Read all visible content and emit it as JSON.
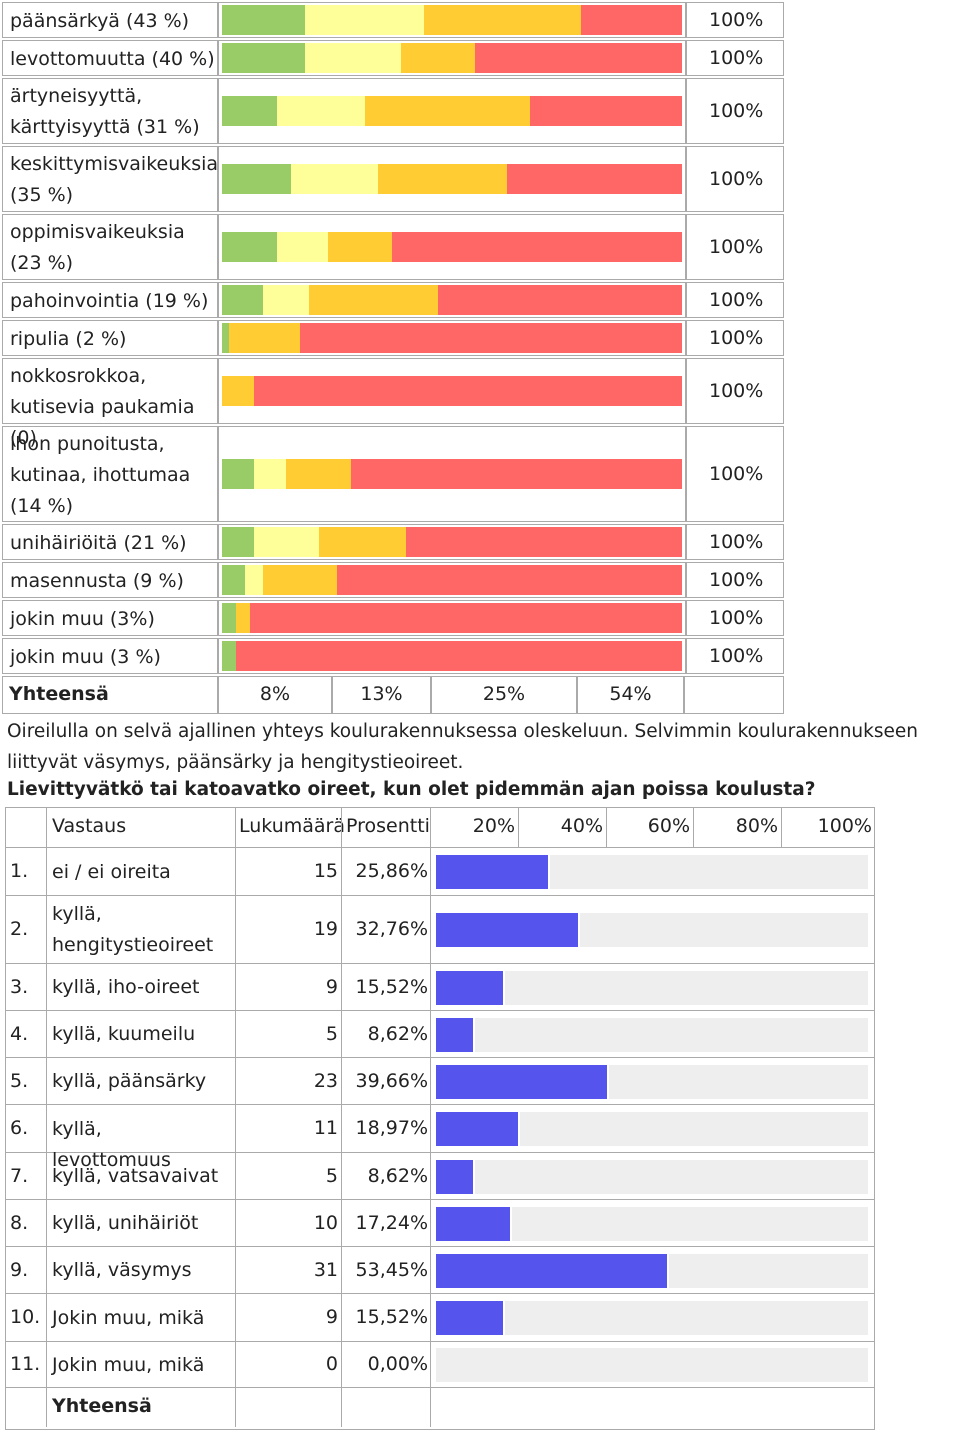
{
  "colors": {
    "green": "#99cc66",
    "lightyellow": "#ffff99",
    "orange": "#ffcc33",
    "red": "#ff6666",
    "blue": "#5555ee",
    "track": "#eeeeee"
  },
  "table1": {
    "rows": [
      {
        "label": "päänsärkyä (43 %)",
        "segments": [
          18,
          26,
          34,
          22
        ],
        "total": "100%"
      },
      {
        "label": "levottomuutta (40 %)",
        "segments": [
          18,
          21,
          16,
          45
        ],
        "total": "100%"
      },
      {
        "label": "ärtyneisyyttä, kärttyisyyttä (31 %)",
        "segments": [
          12,
          19,
          36,
          33
        ],
        "total": "100%"
      },
      {
        "label": "keskittymisvaikeuksia (35 %)",
        "segments": [
          15,
          19,
          28,
          38
        ],
        "total": "100%"
      },
      {
        "label": "oppimisvaikeuksia (23 %)",
        "segments": [
          12,
          11,
          14,
          63
        ],
        "total": "100%"
      },
      {
        "label": "pahoinvointia (19 %)",
        "segments": [
          9,
          10,
          28,
          53
        ],
        "total": "100%"
      },
      {
        "label": "ripulia (2 %)",
        "segments": [
          1.5,
          0,
          15.5,
          83
        ],
        "total": "100%"
      },
      {
        "label": "nokkosrokkoa, kutisevia paukamia (0)",
        "segments": [
          0,
          0,
          7,
          93
        ],
        "total": "100%"
      },
      {
        "label": "ihon punoitusta, kutinaa, ihottumaa (14 %)",
        "segments": [
          7,
          7,
          14,
          72
        ],
        "total": "100%"
      },
      {
        "label": "unihäiriöitä (21 %)",
        "segments": [
          7,
          14,
          19,
          60
        ],
        "total": "100%"
      },
      {
        "label": "masennusta (9 %)",
        "segments": [
          5,
          4,
          16,
          75
        ],
        "total": "100%"
      },
      {
        "label": "jokin muu (3%)",
        "segments": [
          3,
          0,
          3,
          94
        ],
        "total": "100%"
      },
      {
        "label": "jokin muu (3 %)",
        "segments": [
          3,
          0,
          0,
          97
        ],
        "total": "100%"
      }
    ],
    "footer": {
      "label": "Yhteensä",
      "values": [
        "8%",
        "13%",
        "25%",
        "54%"
      ]
    }
  },
  "paragraph": "Oireilulla on selvä ajallinen yhteys koulurakennuksessa oleskeluun. Selvimmin koulurakennukseen liittyvät väsymys, päänsärky ja hengitystieoireet.",
  "question": "Lievittyvätkö tai katoavatko oireet, kun olet pidemmän ajan poissa koulusta?",
  "table2": {
    "headers": {
      "answer": "Vastaus",
      "count": "Lukumäärä",
      "percent": "Prosentti",
      "scale": [
        "20%",
        "40%",
        "60%",
        "80%",
        "100%"
      ]
    },
    "rows": [
      {
        "num": "1.",
        "label": "ei / ei oireita",
        "count": "15",
        "percent": "25,86%",
        "value": 25.86
      },
      {
        "num": "2.",
        "label": "kyllä, hengitystieoireet",
        "count": "19",
        "percent": "32,76%",
        "value": 32.76
      },
      {
        "num": "3.",
        "label": "kyllä, iho-oireet",
        "count": "9",
        "percent": "15,52%",
        "value": 15.52
      },
      {
        "num": "4.",
        "label": "kyllä, kuumeilu",
        "count": "5",
        "percent": "8,62%",
        "value": 8.62
      },
      {
        "num": "5.",
        "label": "kyllä, päänsärky",
        "count": "23",
        "percent": "39,66%",
        "value": 39.66
      },
      {
        "num": "6.",
        "label": "kyllä, levottomuus",
        "count": "11",
        "percent": "18,97%",
        "value": 18.97
      },
      {
        "num": "7.",
        "label": "kyllä, vatsavaivat",
        "count": "5",
        "percent": "8,62%",
        "value": 8.62
      },
      {
        "num": "8.",
        "label": "kyllä, unihäiriöt",
        "count": "10",
        "percent": "17,24%",
        "value": 17.24
      },
      {
        "num": "9.",
        "label": "kyllä, väsymys",
        "count": "31",
        "percent": "53,45%",
        "value": 53.45
      },
      {
        "num": "10.",
        "label": "Jokin muu, mikä",
        "count": "9",
        "percent": "15,52%",
        "value": 15.52
      },
      {
        "num": "11.",
        "label": "Jokin muu, mikä",
        "count": "0",
        "percent": "0,00%",
        "value": 0
      }
    ],
    "footer": "Yhteensä"
  }
}
